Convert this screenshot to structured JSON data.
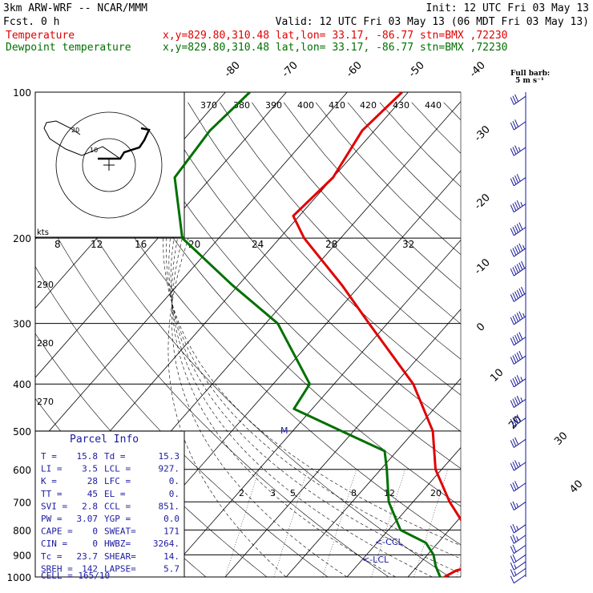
{
  "header": {
    "model": "3km ARW-WRF -- NCAR/MMM",
    "fcst": "Fcst.     0 h",
    "init": "Init: 12 UTC Fri 03 May 13",
    "valid": "Valid: 12 UTC Fri 03 May 13 (06 MDT Fri 03 May 13)",
    "line_temp_name": "Temperature",
    "line_temp_loc": "x,y=829.80,310.48   lat,lon= 33.17, -86.77   stn=BMX ,72230",
    "line_dew_name": "Dewpoint temperature",
    "line_dew_loc": "x,y=829.80,310.48   lat,lon= 33.17, -86.77   stn=BMX ,72230",
    "temp_color": "#e00000",
    "dew_color": "#007000"
  },
  "barb_legend": {
    "title": "Full barb:",
    "unit": "5 m s⁻¹"
  },
  "hodograph": {
    "unit": "kts",
    "ring_labels": [
      "10",
      "20"
    ]
  },
  "parcel_info": {
    "title": "Parcel Info",
    "rows": [
      [
        "T  =",
        "15.8",
        "Td =",
        "15.3"
      ],
      [
        "LI =",
        "3.5",
        "LCL =",
        "927."
      ],
      [
        "K  =",
        "28",
        "LFC =",
        "0."
      ],
      [
        "TT =",
        "45",
        "EL =",
        "0."
      ],
      [
        "SVI =",
        "2.8",
        "CCL =",
        "851."
      ],
      [
        "PW =",
        "3.07",
        "YGP =",
        "0.0"
      ],
      [
        "CAPE =",
        "0",
        "SWEAT=",
        "171"
      ],
      [
        "CIN =",
        "0",
        "HWBZ=",
        "3264."
      ],
      [
        "Tc =",
        "23.7",
        "SHEAR=",
        "14."
      ],
      [
        "SREH =",
        "142",
        "LAPSE=",
        "5.7"
      ]
    ],
    "cell": "CELL = 165/10"
  },
  "labels": {
    "ccl": "<-CCL",
    "lcl": "<-LCL",
    "m": "M"
  },
  "chart_data": {
    "type": "line",
    "title": "",
    "xlabel": "",
    "ylabel": "",
    "pressure_levels": [
      1000,
      900,
      800,
      700,
      600,
      500,
      400,
      300,
      200,
      100
    ],
    "pressure_tick_labels": [
      "1000",
      "900",
      "800",
      "700",
      "600",
      "500",
      "400",
      "300",
      "200",
      "100"
    ],
    "temperature_tick_labels": [
      "-80",
      "-70",
      "-60",
      "-50",
      "-40",
      "-30",
      "-20",
      "-10",
      "0",
      "10",
      "20",
      "30",
      "40"
    ],
    "theta_labels": [
      "370",
      "380",
      "390",
      "400",
      "410",
      "420",
      "430",
      "440"
    ],
    "theta_side_labels": [
      "290",
      "280",
      "270"
    ],
    "mixing_ratio_upper": [
      "8",
      "12",
      "16",
      "20",
      "24",
      "28",
      "32"
    ],
    "mixing_ratio_lower": [
      "2",
      "3",
      "5",
      "8",
      "12",
      "20"
    ],
    "series": [
      {
        "name": "Temperature",
        "color": "#e00000",
        "points": [
          [
            1000,
            16
          ],
          [
            970,
            17
          ],
          [
            950,
            19
          ],
          [
            920,
            22
          ],
          [
            900,
            21
          ],
          [
            850,
            18
          ],
          [
            800,
            13
          ],
          [
            700,
            6
          ],
          [
            600,
            -1
          ],
          [
            500,
            -7
          ],
          [
            400,
            -17
          ],
          [
            300,
            -33
          ],
          [
            250,
            -43
          ],
          [
            200,
            -56
          ],
          [
            180,
            -61
          ],
          [
            150,
            -60
          ],
          [
            120,
            -62
          ],
          [
            100,
            -61
          ]
        ]
      },
      {
        "name": "Dewpoint temperature",
        "color": "#007000",
        "points": [
          [
            1000,
            15.3
          ],
          [
            950,
            13
          ],
          [
            900,
            11
          ],
          [
            850,
            8
          ],
          [
            800,
            2
          ],
          [
            700,
            -4
          ],
          [
            600,
            -9
          ],
          [
            550,
            -12
          ],
          [
            500,
            -22
          ],
          [
            450,
            -33
          ],
          [
            400,
            -34
          ],
          [
            300,
            -48
          ],
          [
            250,
            -61
          ],
          [
            200,
            -76
          ],
          [
            150,
            -86
          ],
          [
            120,
            -87
          ],
          [
            100,
            -86
          ]
        ]
      }
    ],
    "wind_barbs": [
      {
        "p": 990,
        "knots": 10
      },
      {
        "p": 960,
        "knots": 15
      },
      {
        "p": 930,
        "knots": 15
      },
      {
        "p": 900,
        "knots": 20
      },
      {
        "p": 860,
        "knots": 20
      },
      {
        "p": 820,
        "knots": 25
      },
      {
        "p": 780,
        "knots": 25
      },
      {
        "p": 700,
        "knots": 25
      },
      {
        "p": 640,
        "knots": 30
      },
      {
        "p": 580,
        "knots": 35
      },
      {
        "p": 520,
        "knots": 30
      },
      {
        "p": 470,
        "knots": 40
      },
      {
        "p": 430,
        "knots": 45
      },
      {
        "p": 390,
        "knots": 45
      },
      {
        "p": 350,
        "knots": 50
      },
      {
        "p": 320,
        "knots": 50
      },
      {
        "p": 290,
        "knots": 55
      },
      {
        "p": 260,
        "knots": 60
      },
      {
        "p": 230,
        "knots": 60
      },
      {
        "p": 210,
        "knots": 55
      },
      {
        "p": 190,
        "knots": 50
      },
      {
        "p": 170,
        "knots": 45
      },
      {
        "p": 150,
        "knots": 40
      },
      {
        "p": 130,
        "knots": 35
      },
      {
        "p": 115,
        "knots": 30
      },
      {
        "p": 102,
        "knots": 30
      }
    ],
    "grid": true
  }
}
